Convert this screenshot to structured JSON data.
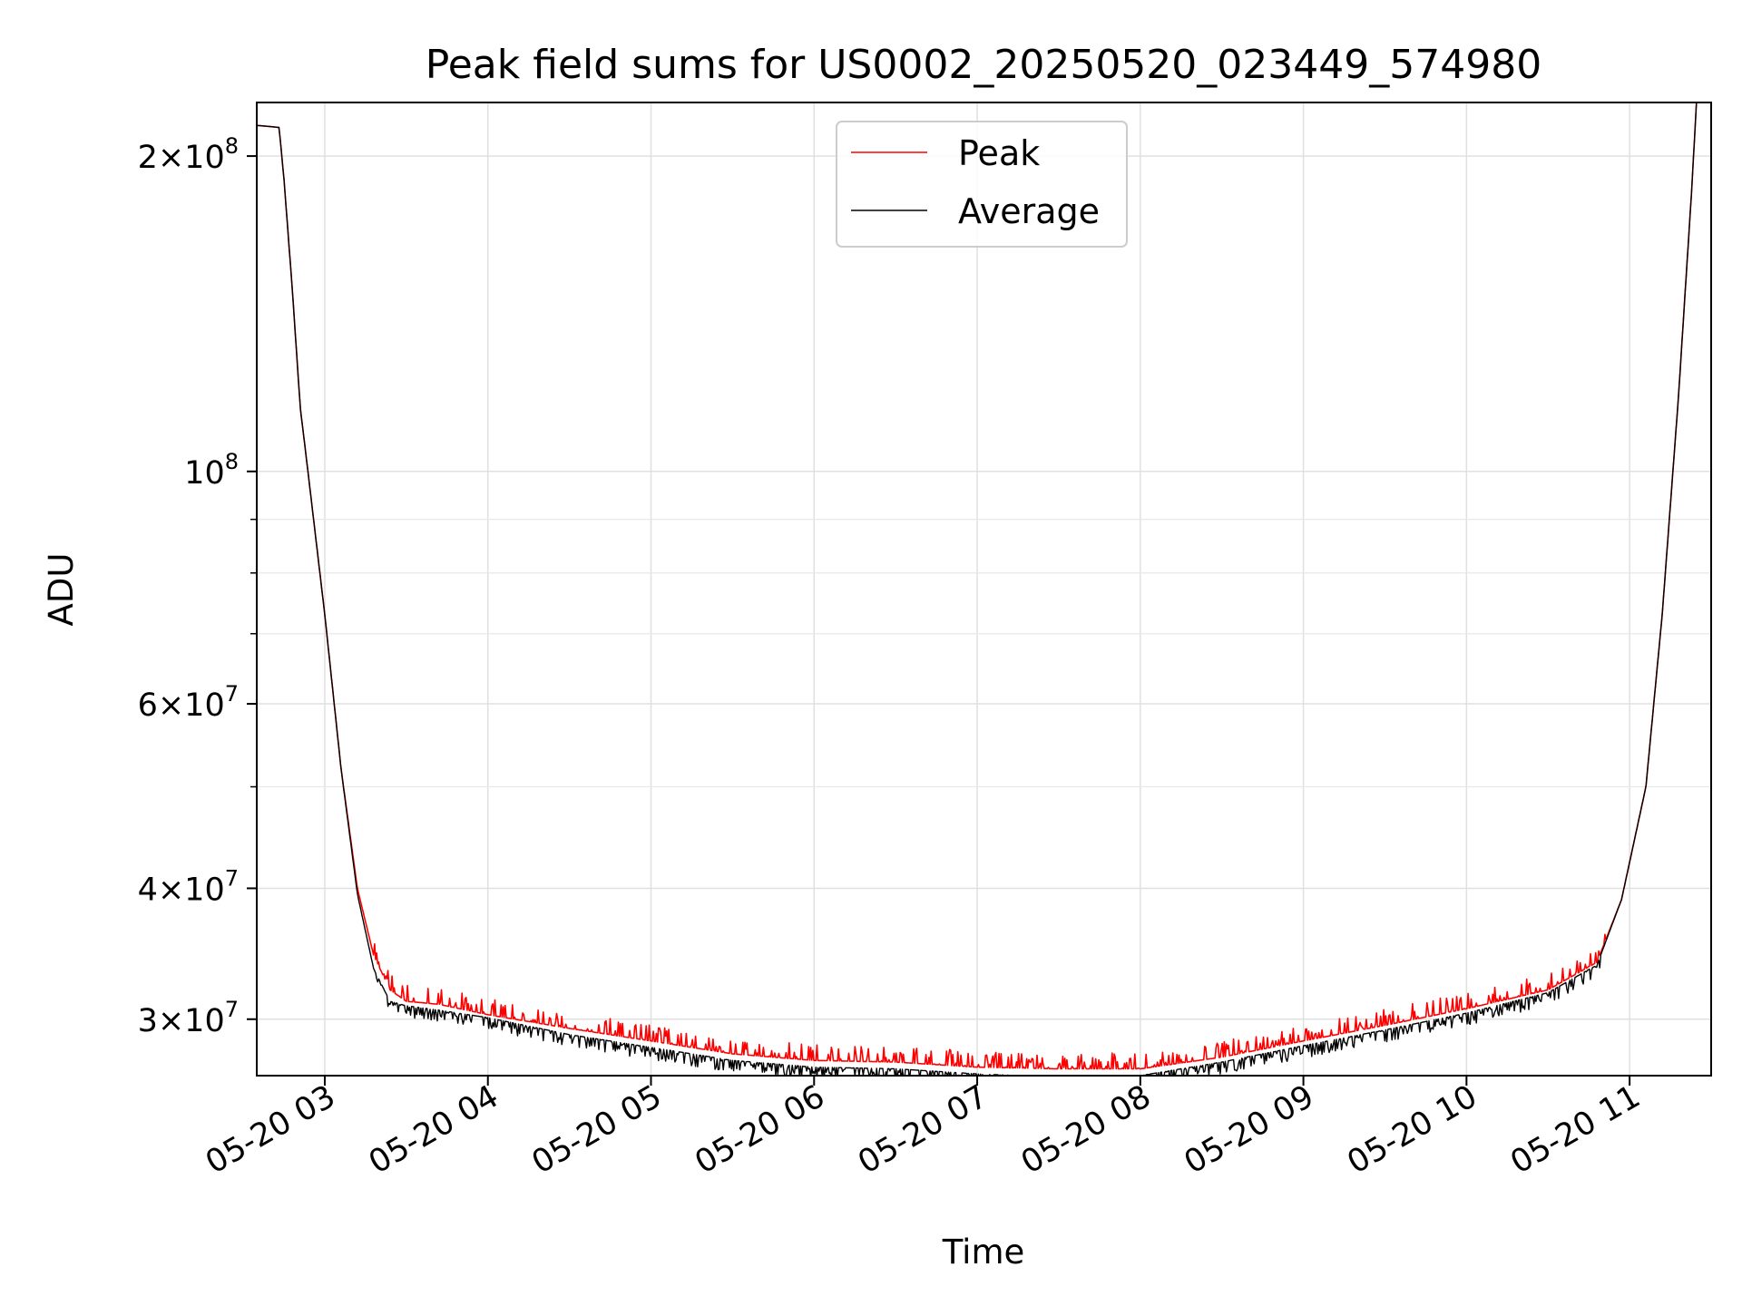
{
  "chart_data": {
    "type": "line",
    "title": "Peak field sums for US0002_20250520_023449_574980",
    "xlabel": "Time",
    "ylabel": "ADU",
    "yscale": "log",
    "ylim": [
      26500000,
      225000000
    ],
    "xlim_hours": [
      2.583,
      11.5
    ],
    "grid": true,
    "legend_location": "upper center",
    "x_tick_labels": [
      "05-20 03",
      "05-20 04",
      "05-20 05",
      "05-20 06",
      "05-20 07",
      "05-20 08",
      "05-20 09",
      "05-20 10",
      "05-20 11"
    ],
    "x_tick_hours": [
      3,
      4,
      5,
      6,
      7,
      8,
      9,
      10,
      11
    ],
    "y_ticks": [
      {
        "value": 30000000,
        "base": "3×10",
        "exp": "7"
      },
      {
        "value": 40000000,
        "base": "4×10",
        "exp": "7"
      },
      {
        "value": 60000000,
        "base": "6×10",
        "exp": "7"
      },
      {
        "value": 100000000,
        "base": "10",
        "exp": "8"
      },
      {
        "value": 200000000,
        "base": "2×10",
        "exp": "8"
      }
    ],
    "y_minor_ticks": [
      50000000,
      70000000,
      80000000,
      90000000
    ],
    "series": [
      {
        "name": "Peak",
        "color": "#ff0000",
        "x_hours": [
          2.58,
          2.72,
          2.75,
          2.8,
          2.85,
          2.9,
          3.0,
          3.1,
          3.2,
          3.3,
          3.4,
          3.5,
          3.7,
          4.0,
          4.5,
          5.0,
          5.5,
          6.0,
          6.5,
          7.0,
          7.5,
          8.0,
          8.5,
          9.0,
          9.5,
          10.0,
          10.5,
          10.8,
          10.95,
          11.1,
          11.2,
          11.3,
          11.38,
          11.41
        ],
        "values": [
          214000000,
          213000000,
          190000000,
          150000000,
          115000000,
          99000000,
          73000000,
          52000000,
          40000000,
          34500000,
          32000000,
          31200000,
          31000000,
          30300000,
          29400000,
          28600000,
          27800000,
          27400000,
          27300000,
          27000000,
          26900000,
          26900000,
          27600000,
          28600000,
          29600000,
          30700000,
          32000000,
          34000000,
          39000000,
          50000000,
          73000000,
          118000000,
          185000000,
          225000000
        ]
      },
      {
        "name": "Average",
        "color": "#000000",
        "x_hours": [
          2.58,
          2.72,
          2.75,
          2.8,
          2.85,
          2.9,
          3.0,
          3.1,
          3.2,
          3.3,
          3.4,
          3.5,
          3.7,
          4.0,
          4.5,
          5.0,
          5.5,
          6.0,
          6.5,
          7.0,
          7.5,
          8.0,
          8.5,
          9.0,
          9.5,
          10.0,
          10.5,
          10.8,
          10.95,
          11.1,
          11.2,
          11.3,
          11.38,
          11.41
        ],
        "values": [
          214000000,
          213000000,
          190000000,
          150000000,
          115000000,
          99000000,
          73000000,
          52000000,
          39500000,
          33500000,
          31200000,
          30900000,
          30600000,
          30100000,
          29000000,
          28200000,
          27400000,
          27000000,
          26900000,
          26600000,
          26400000,
          26500000,
          27300000,
          28300000,
          29300000,
          30400000,
          31800000,
          33800000,
          39000000,
          50000000,
          73000000,
          118000000,
          185000000,
          225000000
        ]
      }
    ]
  }
}
